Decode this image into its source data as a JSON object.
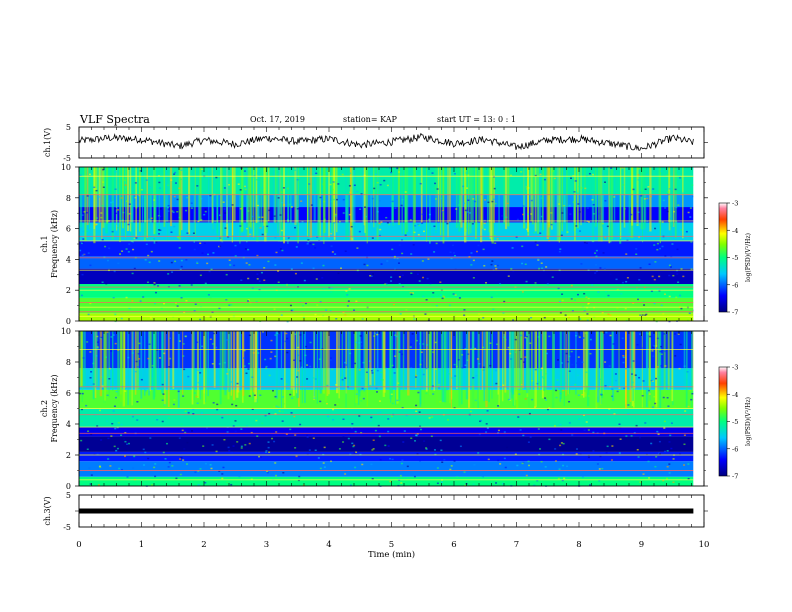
{
  "header": {
    "title": "VLF Spectra",
    "date": "Oct. 17, 2019",
    "station": "station= KAP",
    "start": "start  UT =   13: 0  : 1"
  },
  "chart_data": [
    {
      "type": "line",
      "name": "ch1-waveform",
      "ylabel": "ch.1(V)",
      "ylim": [
        -5,
        5
      ],
      "yticks": [
        "5",
        "-5"
      ],
      "xlim": [
        0,
        10
      ],
      "x_end": 9.83,
      "series": [
        {
          "x": [
            0,
            0.5,
            1.0,
            1.6,
            2.0,
            2.5,
            3.0,
            3.5,
            4.0,
            4.5,
            5.0,
            5.5,
            6.0,
            6.5,
            7.0,
            7.5,
            8.0,
            8.5,
            9.0,
            9.5,
            9.83
          ],
          "y": [
            0.5,
            1.5,
            1.0,
            -1.2,
            0.8,
            -0.5,
            1.5,
            0.3,
            1.2,
            -0.8,
            0.2,
            1.8,
            -0.3,
            1.0,
            -1.5,
            0.8,
            1.2,
            -0.3,
            -2.0,
            1.5,
            0.0
          ]
        }
      ]
    },
    {
      "type": "heatmap",
      "name": "ch1-spectrogram",
      "ylabel": "ch.1\nFrequency (kHz)",
      "ylim": [
        0,
        10
      ],
      "yticks": [
        "0",
        "2",
        "4",
        "6",
        "8",
        "10"
      ],
      "xlim": [
        0,
        10
      ],
      "x_end": 9.83,
      "bands": [
        {
          "f0": 0,
          "f1": 0.5,
          "level": -4.4
        },
        {
          "f0": 0.5,
          "f1": 1.5,
          "level": -4.7
        },
        {
          "f0": 1.5,
          "f1": 2.4,
          "level": -5.0
        },
        {
          "f0": 2.4,
          "f1": 3.4,
          "level": -6.7
        },
        {
          "f0": 3.4,
          "f1": 4.2,
          "level": -6.0
        },
        {
          "f0": 4.2,
          "f1": 5.2,
          "level": -6.3
        },
        {
          "f0": 5.2,
          "f1": 6.4,
          "level": -5.5
        },
        {
          "f0": 6.4,
          "f1": 7.4,
          "level": -6.4
        },
        {
          "f0": 7.4,
          "f1": 8.2,
          "level": -5.8
        },
        {
          "f0": 8.2,
          "f1": 10,
          "level": -5.2
        }
      ],
      "lines_khz": [
        0.3,
        0.6,
        0.9,
        1.2,
        2.0,
        2.2,
        3.3,
        4.1,
        5.2,
        5.5,
        6.5,
        8.2,
        9.4
      ],
      "colorbar": {
        "label": "log(PSD)(V²/Hz)",
        "range": [
          -7,
          -3
        ],
        "ticks": [
          "-3",
          "-4",
          "-5",
          "-6",
          "-7"
        ]
      }
    },
    {
      "type": "heatmap",
      "name": "ch2-spectrogram",
      "ylabel": "ch.2\nFrequency (kHz)",
      "ylim": [
        0,
        10
      ],
      "yticks": [
        "0",
        "2",
        "4",
        "6",
        "8",
        "10"
      ],
      "xlim": [
        0,
        10
      ],
      "x_end": 9.83,
      "bands": [
        {
          "f0": 0,
          "f1": 0.6,
          "level": -5.0
        },
        {
          "f0": 0.6,
          "f1": 1.6,
          "level": -5.9
        },
        {
          "f0": 1.6,
          "f1": 2.2,
          "level": -6.3
        },
        {
          "f0": 2.2,
          "f1": 3.2,
          "level": -6.9
        },
        {
          "f0": 3.2,
          "f1": 3.8,
          "level": -6.5
        },
        {
          "f0": 3.8,
          "f1": 5.0,
          "level": -5.2
        },
        {
          "f0": 5.0,
          "f1": 6.2,
          "level": -4.7
        },
        {
          "f0": 6.2,
          "f1": 7.6,
          "level": -5.5
        },
        {
          "f0": 7.6,
          "f1": 10,
          "level": -6.2
        }
      ],
      "lines_khz": [
        0.4,
        1.0,
        2.0,
        3.4,
        3.8,
        4.6,
        5.0,
        6.4,
        8.8
      ],
      "colorbar": {
        "label": "log(PSD)(V²/Hz)",
        "range": [
          -7,
          -3
        ],
        "ticks": [
          "-3",
          "-4",
          "-5",
          "-6",
          "-7"
        ]
      }
    },
    {
      "type": "line",
      "name": "ch3-waveform",
      "ylabel": "ch.3(V)",
      "ylim": [
        -5,
        5
      ],
      "yticks": [
        "5",
        "-5"
      ],
      "xlim": [
        0,
        10
      ],
      "x_end": 9.83,
      "series": [
        {
          "x": [
            0,
            9.83
          ],
          "y": [
            0,
            0
          ]
        }
      ],
      "xlabel": "Time (min)",
      "xticks": [
        "0",
        "1",
        "2",
        "3",
        "4",
        "5",
        "6",
        "7",
        "8",
        "9",
        "10"
      ]
    }
  ]
}
